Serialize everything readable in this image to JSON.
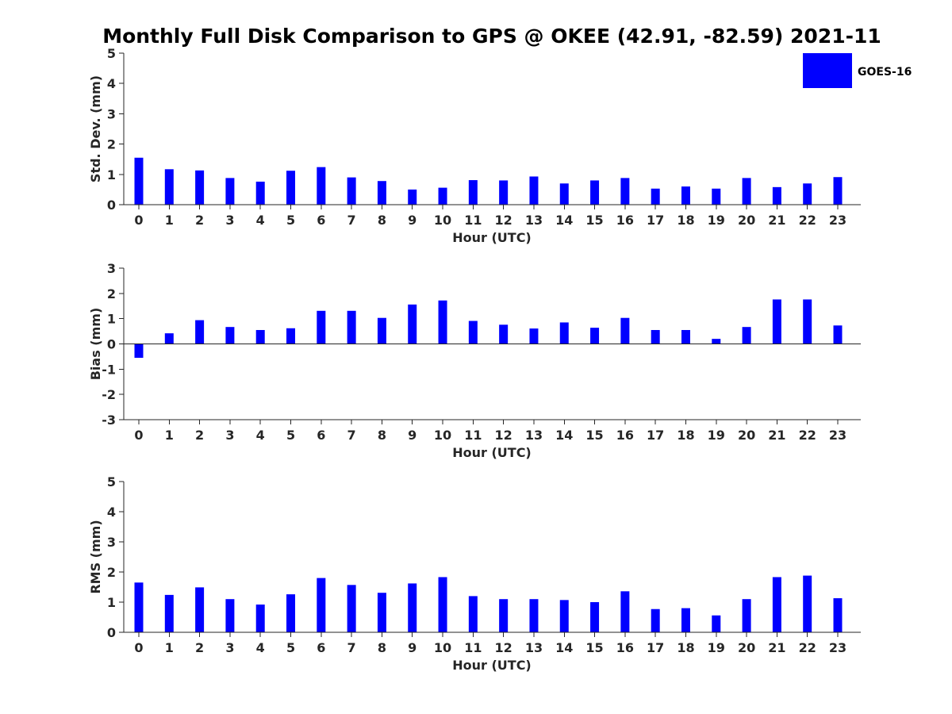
{
  "title": "Monthly Full Disk Comparison to GPS @ OKEE (42.91, -82.59) 2021-11",
  "legend": {
    "label": "GOES-16",
    "color": "#0000ff"
  },
  "chart_data": [
    {
      "type": "bar",
      "ylabel": "Std. Dev. (mm)",
      "xlabel": "Hour (UTC)",
      "ylim": [
        0,
        5
      ],
      "yticks": [
        0,
        1,
        2,
        3,
        4,
        5
      ],
      "categories": [
        "0",
        "1",
        "2",
        "3",
        "4",
        "5",
        "6",
        "7",
        "8",
        "9",
        "10",
        "11",
        "12",
        "13",
        "14",
        "15",
        "16",
        "17",
        "18",
        "19",
        "20",
        "21",
        "22",
        "23"
      ],
      "series": [
        {
          "name": "GOES-16",
          "color": "#0000ff",
          "values": [
            1.55,
            1.17,
            1.13,
            0.88,
            0.76,
            1.12,
            1.24,
            0.9,
            0.78,
            0.5,
            0.56,
            0.81,
            0.8,
            0.93,
            0.7,
            0.8,
            0.88,
            0.53,
            0.6,
            0.53,
            0.88,
            0.58,
            0.7,
            0.91
          ]
        }
      ]
    },
    {
      "type": "bar",
      "ylabel": "Bias (mm)",
      "xlabel": "Hour (UTC)",
      "ylim": [
        -3,
        3
      ],
      "yticks": [
        -3,
        -2,
        -1,
        0,
        1,
        2,
        3
      ],
      "categories": [
        "0",
        "1",
        "2",
        "3",
        "4",
        "5",
        "6",
        "7",
        "8",
        "9",
        "10",
        "11",
        "12",
        "13",
        "14",
        "15",
        "16",
        "17",
        "18",
        "19",
        "20",
        "21",
        "22",
        "23"
      ],
      "series": [
        {
          "name": "GOES-16",
          "color": "#0000ff",
          "values": [
            -0.55,
            0.42,
            0.94,
            0.67,
            0.55,
            0.62,
            1.31,
            1.31,
            1.03,
            1.56,
            1.72,
            0.91,
            0.76,
            0.61,
            0.85,
            0.64,
            1.03,
            0.55,
            0.55,
            0.2,
            0.67,
            1.76,
            1.76,
            0.73
          ]
        }
      ]
    },
    {
      "type": "bar",
      "ylabel": "RMS (mm)",
      "xlabel": "Hour (UTC)",
      "ylim": [
        0,
        5
      ],
      "yticks": [
        0,
        1,
        2,
        3,
        4,
        5
      ],
      "categories": [
        "0",
        "1",
        "2",
        "3",
        "4",
        "5",
        "6",
        "7",
        "8",
        "9",
        "10",
        "11",
        "12",
        "13",
        "14",
        "15",
        "16",
        "17",
        "18",
        "19",
        "20",
        "21",
        "22",
        "23"
      ],
      "series": [
        {
          "name": "GOES-16",
          "color": "#0000ff",
          "values": [
            1.65,
            1.24,
            1.49,
            1.1,
            0.92,
            1.26,
            1.8,
            1.57,
            1.31,
            1.62,
            1.83,
            1.2,
            1.1,
            1.1,
            1.07,
            1.0,
            1.36,
            0.77,
            0.8,
            0.56,
            1.1,
            1.83,
            1.88,
            1.13
          ]
        }
      ]
    }
  ]
}
